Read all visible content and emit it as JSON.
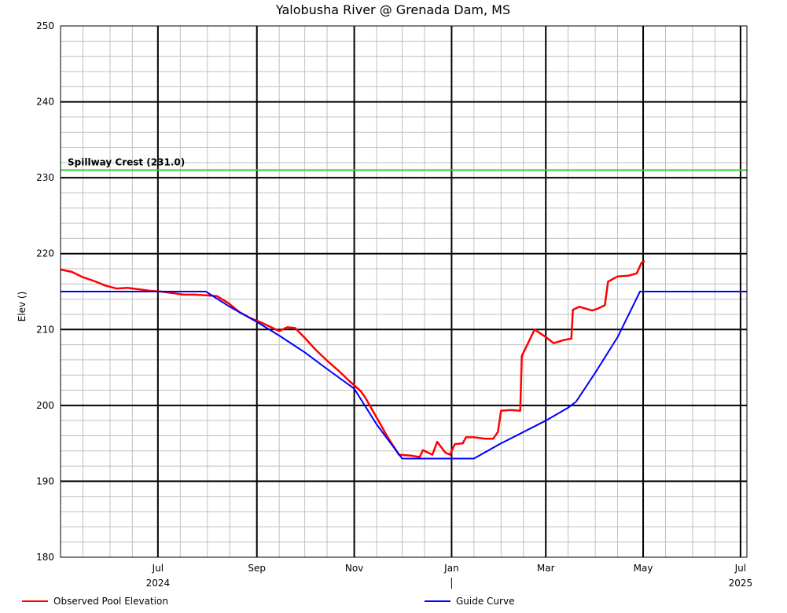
{
  "chart_data": {
    "type": "line",
    "title": "Yalobusha River @ Grenada Dam, MS",
    "ylabel": "Elev ()",
    "ylim": [
      180,
      250
    ],
    "yticks": [
      180,
      190,
      200,
      210,
      220,
      230,
      240,
      250
    ],
    "xlim": [
      "2024-05-01",
      "2025-07-05"
    ],
    "xticks": [
      {
        "date": "2024-07-01",
        "label": "Jul"
      },
      {
        "date": "2024-09-01",
        "label": "Sep"
      },
      {
        "date": "2024-11-01",
        "label": "Nov"
      },
      {
        "date": "2025-01-01",
        "label": "Jan"
      },
      {
        "date": "2025-03-01",
        "label": "Mar"
      },
      {
        "date": "2025-05-01",
        "label": "May"
      },
      {
        "date": "2025-07-01",
        "label": "Jul"
      }
    ],
    "year_labels": [
      {
        "date": "2024-07-01",
        "label": "2024"
      },
      {
        "date": "2025-07-01",
        "label": "2025"
      }
    ],
    "grid": true,
    "legend_position": "bottom",
    "reference_line": {
      "label": "Spillway Crest (231.0)",
      "value": 231.0,
      "color": "#33cc33"
    },
    "series": [
      {
        "name": "Observed Pool Elevation",
        "color": "#ff0000",
        "points": [
          [
            "2024-05-01",
            217.9
          ],
          [
            "2024-05-08",
            217.6
          ],
          [
            "2024-05-15",
            216.9
          ],
          [
            "2024-05-22",
            216.4
          ],
          [
            "2024-05-29",
            215.8
          ],
          [
            "2024-06-05",
            215.4
          ],
          [
            "2024-06-12",
            215.5
          ],
          [
            "2024-06-19",
            215.3
          ],
          [
            "2024-06-26",
            215.1
          ],
          [
            "2024-07-03",
            215.0
          ],
          [
            "2024-07-10",
            214.8
          ],
          [
            "2024-07-17",
            214.6
          ],
          [
            "2024-07-24",
            214.6
          ],
          [
            "2024-07-31",
            214.5
          ],
          [
            "2024-08-07",
            214.4
          ],
          [
            "2024-08-14",
            213.5
          ],
          [
            "2024-08-21",
            212.3
          ],
          [
            "2024-08-28",
            211.5
          ],
          [
            "2024-09-04",
            210.9
          ],
          [
            "2024-09-11",
            210.2
          ],
          [
            "2024-09-15",
            209.8
          ],
          [
            "2024-09-20",
            210.3
          ],
          [
            "2024-09-25",
            210.2
          ],
          [
            "2024-10-01",
            208.9
          ],
          [
            "2024-10-08",
            207.3
          ],
          [
            "2024-10-15",
            205.9
          ],
          [
            "2024-10-22",
            204.6
          ],
          [
            "2024-10-29",
            203.2
          ],
          [
            "2024-11-05",
            201.9
          ],
          [
            "2024-11-08",
            201.0
          ],
          [
            "2024-11-15",
            198.4
          ],
          [
            "2024-11-22",
            195.8
          ],
          [
            "2024-11-29",
            193.5
          ],
          [
            "2024-12-06",
            193.4
          ],
          [
            "2024-12-12",
            193.2
          ],
          [
            "2024-12-14",
            194.1
          ],
          [
            "2024-12-20",
            193.5
          ],
          [
            "2024-12-23",
            195.2
          ],
          [
            "2024-12-28",
            193.8
          ],
          [
            "2024-12-31",
            193.5
          ],
          [
            "2025-01-03",
            194.9
          ],
          [
            "2025-01-08",
            195.0
          ],
          [
            "2025-01-10",
            195.8
          ],
          [
            "2025-01-15",
            195.8
          ],
          [
            "2025-01-22",
            195.6
          ],
          [
            "2025-01-27",
            195.6
          ],
          [
            "2025-01-30",
            196.5
          ],
          [
            "2025-02-01",
            199.3
          ],
          [
            "2025-02-07",
            199.4
          ],
          [
            "2025-02-13",
            199.3
          ],
          [
            "2025-02-14",
            206.5
          ],
          [
            "2025-02-22",
            210.0
          ],
          [
            "2025-03-01",
            209.0
          ],
          [
            "2025-03-06",
            208.2
          ],
          [
            "2025-03-12",
            208.6
          ],
          [
            "2025-03-17",
            208.8
          ],
          [
            "2025-03-18",
            212.6
          ],
          [
            "2025-03-22",
            213.0
          ],
          [
            "2025-03-30",
            212.5
          ],
          [
            "2025-04-02",
            212.7
          ],
          [
            "2025-04-07",
            213.2
          ],
          [
            "2025-04-09",
            216.3
          ],
          [
            "2025-04-15",
            217.0
          ],
          [
            "2025-04-22",
            217.1
          ],
          [
            "2025-04-27",
            217.4
          ],
          [
            "2025-04-30",
            218.8
          ],
          [
            "2025-05-02",
            219.0
          ]
        ]
      },
      {
        "name": "Guide Curve",
        "color": "#0000ff",
        "points": [
          [
            "2024-05-01",
            215.0
          ],
          [
            "2024-07-31",
            215.0
          ],
          [
            "2024-08-15",
            213.0
          ],
          [
            "2024-09-01",
            211.0
          ],
          [
            "2024-09-15",
            209.2
          ],
          [
            "2024-10-01",
            207.0
          ],
          [
            "2024-10-15",
            204.8
          ],
          [
            "2024-11-01",
            202.2
          ],
          [
            "2024-11-15",
            197.5
          ],
          [
            "2024-12-01",
            193.0
          ],
          [
            "2025-01-15",
            193.0
          ],
          [
            "2025-02-01",
            195.0
          ],
          [
            "2025-02-15",
            196.5
          ],
          [
            "2025-03-01",
            198.0
          ],
          [
            "2025-03-15",
            199.7
          ],
          [
            "2025-03-20",
            200.5
          ],
          [
            "2025-04-01",
            204.3
          ],
          [
            "2025-04-15",
            209.0
          ],
          [
            "2025-04-29",
            215.0
          ],
          [
            "2025-07-05",
            215.0
          ]
        ]
      }
    ]
  }
}
